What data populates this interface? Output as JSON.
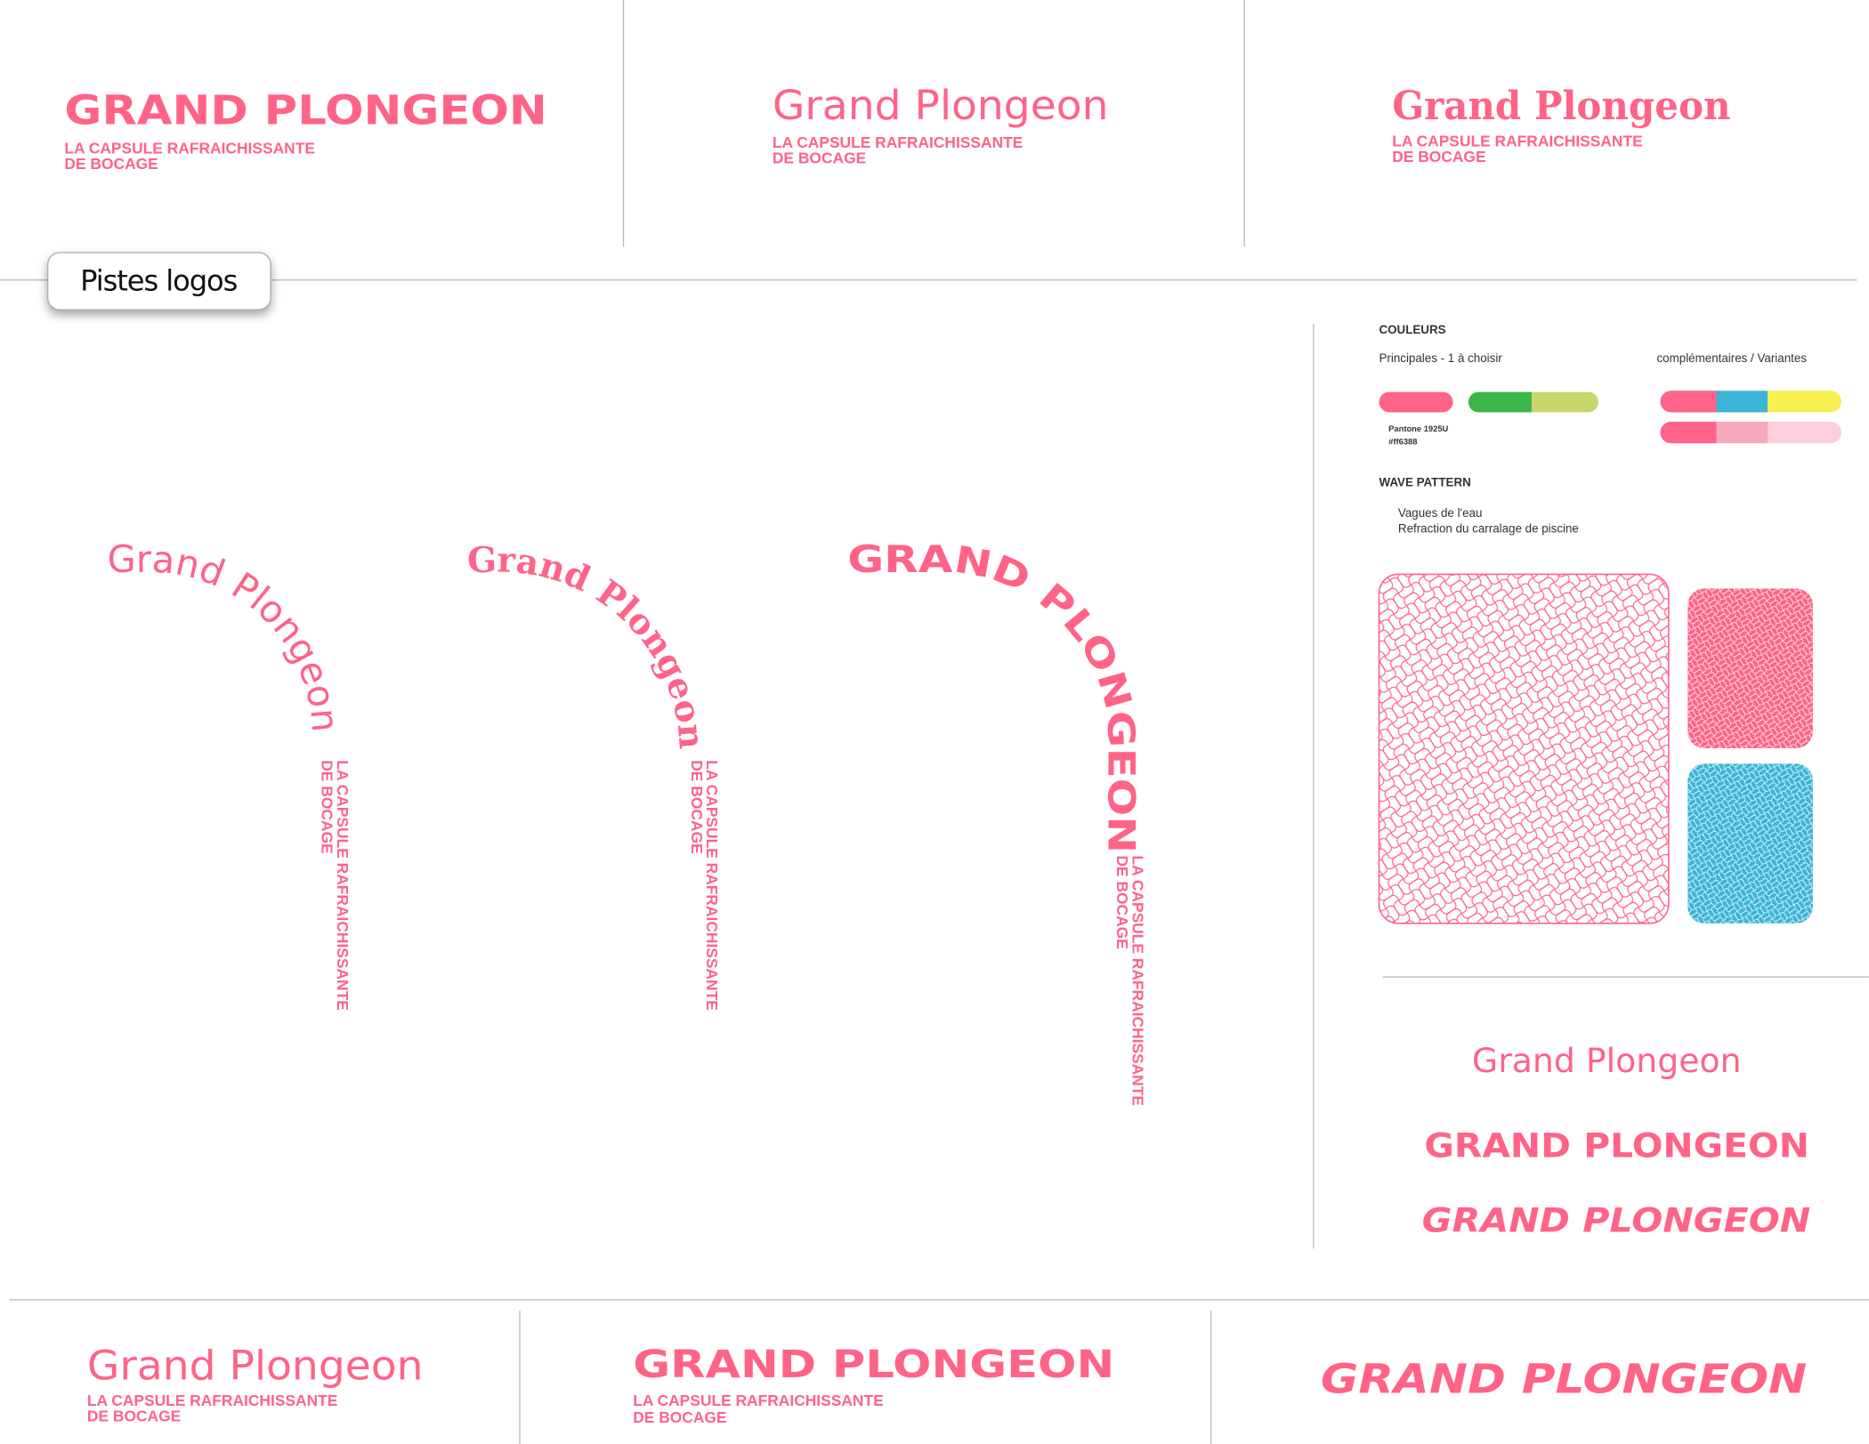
{
  "top_logos": [
    {
      "title": "GRAND PLONGEON",
      "tagline": [
        "LA CAPSULE RAFRAICHISSANTE",
        "DE BOCAGE"
      ]
    },
    {
      "title": "Grand Plongeon",
      "tagline": [
        "LA CAPSULE RAFRAICHISSANTE",
        "DE BOCAGE"
      ]
    },
    {
      "title": "Grand Plongeon",
      "tagline": [
        "LA CAPSULE RAFRAICHISSANTE",
        "DE BOCAGE"
      ]
    }
  ],
  "section_label": "Pistes logos",
  "arc_logos": [
    {
      "title": "Grand Plongeon",
      "tagline": [
        "LA CAPSULE RAFRAICHISSANTE",
        "DE BOCAGE"
      ]
    },
    {
      "title": "Grand Plongeon",
      "tagline": [
        "LA CAPSULE RAFRAICHISSANTE",
        "DE BOCAGE"
      ]
    },
    {
      "title": "GRAND PLONGEON",
      "tagline": [
        "LA CAPSULE RAFRAICHISSANTE",
        "DE BOCAGE"
      ]
    }
  ],
  "colors": {
    "heading": "COULEURS",
    "primary_label": "Principales - 1 à choisir",
    "secondary_label": "complémentaires / Variantes",
    "pantone": "Pantone 1925U",
    "hex": "#ff6388"
  },
  "wave_pattern": {
    "heading": "WAVE PATTERN",
    "lines": [
      "Vagues de l'eau",
      "Refraction du carralage de piscine"
    ]
  },
  "variants": [
    "Grand Plongeon",
    "GRAND PLONGEON",
    "GRAND PLONGEON"
  ],
  "bottom_logos": [
    {
      "title": "Grand Plongeon",
      "tagline": [
        "LA CAPSULE RAFRAICHISSANTE",
        "DE BOCAGE"
      ]
    },
    {
      "title": "GRAND PLONGEON",
      "tagline": [
        "LA CAPSULE RAFRAICHISSANTE",
        "DE BOCAGE"
      ]
    },
    {
      "title": "GRAND PLONGEON"
    }
  ]
}
